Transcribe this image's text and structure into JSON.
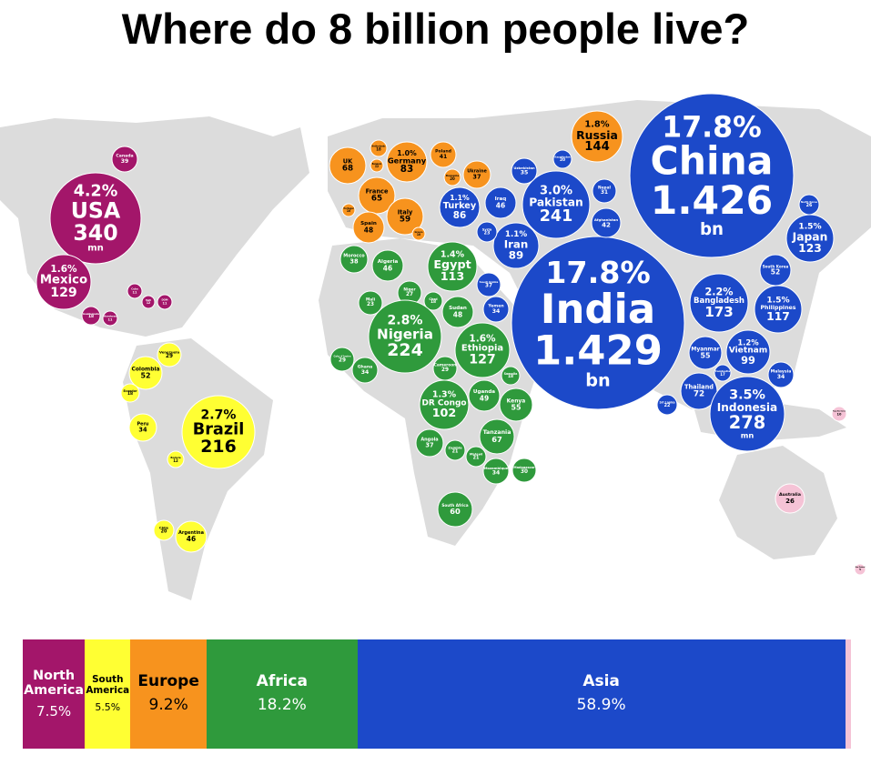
{
  "title": "Where do 8 billion people live?",
  "map": {
    "groups": [
      {
        "color": "#a3166a",
        "text_color": "#ffffff",
        "bubbles": [
          {
            "label": "Canada",
            "value": 39
          },
          {
            "label": "USA",
            "percent": "4.2%",
            "value": 340,
            "unit": "mn"
          },
          {
            "label": "Mexico",
            "percent": "1.6%",
            "value": 129
          },
          {
            "label": "Cuba",
            "value": 11
          },
          {
            "label": "Haiti",
            "value": 12
          },
          {
            "label": "DOM",
            "value": 11
          },
          {
            "label": "Guatemala",
            "value": 18
          },
          {
            "label": "Honduras",
            "value": 11
          }
        ]
      },
      {
        "color": "#ffff33",
        "text_color": "#000000",
        "bubbles": [
          {
            "label": "Venezuela",
            "value": 29
          },
          {
            "label": "Colombia",
            "value": 52
          },
          {
            "label": "Ecuador",
            "value": 18
          },
          {
            "label": "Peru",
            "value": 34
          },
          {
            "label": "Brazil",
            "percent": "2.7%",
            "value": 216
          },
          {
            "label": "Bolivia",
            "value": 12
          },
          {
            "label": "Chile",
            "value": 20
          },
          {
            "label": "Argentina",
            "value": 46
          }
        ]
      },
      {
        "color": "#f7931e",
        "text_color": "#000000",
        "bubbles": [
          {
            "label": "UK",
            "value": 68
          },
          {
            "label": "Germany",
            "percent": "1.0%",
            "value": 83
          },
          {
            "label": "Poland",
            "value": 41
          },
          {
            "label": "Ukraine",
            "value": 37
          },
          {
            "label": "France",
            "value": 65
          },
          {
            "label": "Italy",
            "value": 59
          },
          {
            "label": "Spain",
            "value": 48
          },
          {
            "label": "Russia",
            "percent": "1.8%",
            "value": 144
          },
          {
            "label": "Netherlands",
            "value": 18
          },
          {
            "label": "Belgium",
            "value": 12
          },
          {
            "label": "Romania",
            "value": 20
          },
          {
            "label": "Portugal",
            "value": 10
          },
          {
            "label": "Greece",
            "value": 10
          }
        ]
      },
      {
        "color": "#2f9a3c",
        "text_color": "#ffffff",
        "bubbles": [
          {
            "label": "Morocco",
            "value": 38
          },
          {
            "label": "Algeria",
            "value": 46
          },
          {
            "label": "Egypt",
            "percent": "1.4%",
            "value": 113
          },
          {
            "label": "Mali",
            "value": 23
          },
          {
            "label": "Niger",
            "value": 27
          },
          {
            "label": "Chad",
            "value": 18
          },
          {
            "label": "Sudan",
            "value": 48
          },
          {
            "label": "Nigeria",
            "percent": "2.8%",
            "value": 224
          },
          {
            "label": "Ethiopia",
            "percent": "1.6%",
            "value": 127
          },
          {
            "label": "Ghana",
            "value": 34
          },
          {
            "label": "Cote d'Ivoire",
            "value": 29
          },
          {
            "label": "Cameroon",
            "value": 29
          },
          {
            "label": "DR Congo",
            "percent": "1.3%",
            "value": 102
          },
          {
            "label": "Uganda",
            "value": 49
          },
          {
            "label": "Kenya",
            "value": 55
          },
          {
            "label": "Tanzania",
            "value": 67
          },
          {
            "label": "Angola",
            "value": 37
          },
          {
            "label": "Mozambique",
            "value": 34
          },
          {
            "label": "Madagascar",
            "value": 30
          },
          {
            "label": "South Africa",
            "value": 60
          },
          {
            "label": "Zambia",
            "value": 21
          },
          {
            "label": "Malawi",
            "value": 21
          },
          {
            "label": "Somalia",
            "value": 18
          }
        ]
      },
      {
        "color": "#1c49c9",
        "text_color": "#ffffff",
        "bubbles": [
          {
            "label": "China",
            "percent": "17.8%",
            "value": 1.426,
            "unit": "bn"
          },
          {
            "label": "India",
            "percent": "17.8%",
            "value": 1.429,
            "unit": "bn"
          },
          {
            "label": "Pakistan",
            "percent": "3.0%",
            "value": 241
          },
          {
            "label": "Iran",
            "percent": "1.1%",
            "value": 89
          },
          {
            "label": "Iraq",
            "value": 46
          },
          {
            "label": "Turkey",
            "percent": "1.1%",
            "value": 86
          },
          {
            "label": "Syria",
            "value": 23
          },
          {
            "label": "Saudi Arabia",
            "value": 37
          },
          {
            "label": "Afghanistan",
            "value": 42
          },
          {
            "label": "Nepal",
            "value": 31
          },
          {
            "label": "Uzbekistan",
            "value": 35
          },
          {
            "label": "Japan",
            "percent": "1.5%",
            "value": 123
          },
          {
            "label": "South Korea",
            "value": 52
          },
          {
            "label": "Bangladesh",
            "percent": "2.2%",
            "value": 173
          },
          {
            "label": "Philippines",
            "percent": "1.5%",
            "value": 117
          },
          {
            "label": "Vietnam",
            "percent": "1.2%",
            "value": 99
          },
          {
            "label": "Myanmar",
            "value": 55
          },
          {
            "label": "Thailand",
            "value": 72
          },
          {
            "label": "Indonesia",
            "percent": "3.5%",
            "value": 278,
            "unit": "mn"
          },
          {
            "label": "Malaysia",
            "value": 34
          },
          {
            "label": "Sri Lanka",
            "value": 22
          },
          {
            "label": "North Korea",
            "value": 26
          },
          {
            "label": "Kazakhstan",
            "value": 20
          },
          {
            "label": "Yemen",
            "value": 34
          },
          {
            "label": "Cambodia",
            "value": 17
          }
        ]
      },
      {
        "color": "#f5c3d6",
        "text_color": "#000000",
        "bubbles": [
          {
            "label": "Australia",
            "value": 26
          },
          {
            "label": "Papua New Guinea",
            "value": 10
          },
          {
            "label": "New Zealand",
            "value": 5
          }
        ]
      }
    ]
  },
  "bar": {
    "segments": [
      {
        "name": "North America",
        "color": "#a3166a",
        "text_color": "#ffffff",
        "share": {
          "value": 7.5,
          "label": "7.5%"
        }
      },
      {
        "name": "South America",
        "color": "#ffff33",
        "text_color": "#000000",
        "share": {
          "value": 5.5,
          "label": "5.5%"
        }
      },
      {
        "name": "Europe",
        "color": "#f7931e",
        "text_color": "#000000",
        "share": {
          "value": 9.2,
          "label": "9.2%"
        }
      },
      {
        "name": "Africa",
        "color": "#2f9a3c",
        "text_color": "#ffffff",
        "share": {
          "value": 18.2,
          "label": "18.2%"
        }
      },
      {
        "name": "Asia",
        "color": "#1c49c9",
        "text_color": "#ffffff",
        "share": {
          "value": 58.9,
          "label": "58.9%"
        }
      }
    ]
  }
}
